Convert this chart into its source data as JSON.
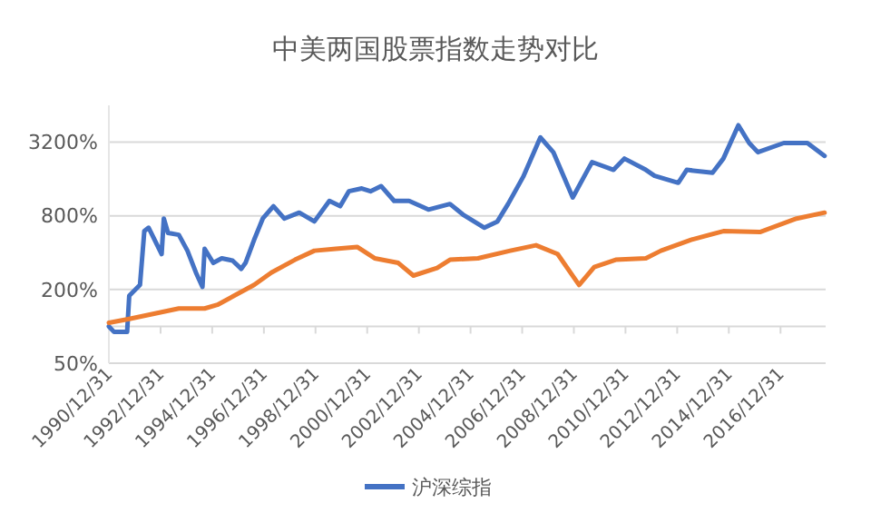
{
  "chart_data": {
    "type": "line",
    "title": "中美两国股票指数走势对比",
    "log": "y",
    "grid": "y",
    "legend": "bottom",
    "line_style": "solid",
    "marker": "none",
    "xlim": [
      "1990-12-31",
      "2018-09-30"
    ],
    "xticks": [
      {
        "value": "1990-12-31",
        "label": "1990/12/31"
      },
      {
        "value": "1992-12-31",
        "label": "1992/12/31"
      },
      {
        "value": "1994-12-31",
        "label": "1994/12/31"
      },
      {
        "value": "1996-12-31",
        "label": "1996/12/31"
      },
      {
        "value": "1998-12-31",
        "label": "1998/12/31"
      },
      {
        "value": "2000-12-31",
        "label": "2000/12/31"
      },
      {
        "value": "2002-12-31",
        "label": "2002/12/31"
      },
      {
        "value": "2004-12-31",
        "label": "2004/12/31"
      },
      {
        "value": "2006-12-31",
        "label": "2006/12/31"
      },
      {
        "value": "2008-12-31",
        "label": "2008/12/31"
      },
      {
        "value": "2010-12-31",
        "label": "2010/12/31"
      },
      {
        "value": "2012-12-31",
        "label": "2012/12/31"
      },
      {
        "value": "2014-12-31",
        "label": "2014/12/31"
      },
      {
        "value": "2016-12-31",
        "label": "2016/12/31"
      }
    ],
    "ylim": [
      50,
      6400
    ],
    "yticks": [
      {
        "value": 50,
        "label": "50%"
      },
      {
        "value": 200,
        "label": "200%"
      },
      {
        "value": 800,
        "label": "800%"
      },
      {
        "value": 3200,
        "label": "3200%"
      }
    ],
    "ref_lines": [
      {
        "axis": "y",
        "value": 100,
        "color": "#d9d9d9"
      }
    ],
    "series": [
      {
        "name": "沪深综指",
        "color": "#4472c4",
        "x": [
          "1990-12-31",
          "1991-03",
          "1991-09",
          "1991-10",
          "1992-03",
          "1992-05",
          "1992-07",
          "1993-01",
          "1993-02",
          "1993-04",
          "1993-09",
          "1994-01",
          "1994-05",
          "1994-08",
          "1994-09",
          "1995-01",
          "1995-05",
          "1995-10",
          "1996-02",
          "1996-04",
          "1996-08",
          "1996-12",
          "1997-05",
          "1997-10",
          "1998-05",
          "1998-12",
          "1999-07",
          "1999-12",
          "2000-04",
          "2000-10",
          "2001-02",
          "2001-07",
          "2002-01",
          "2002-08",
          "2003-05",
          "2004-03",
          "2004-09",
          "2005-07",
          "2006-01",
          "2006-06",
          "2007-01",
          "2007-09",
          "2008-03",
          "2008-12",
          "2009-07",
          "2009-09",
          "2010-07",
          "2010-12",
          "2011-10",
          "2012-02",
          "2013-01",
          "2013-05",
          "2014-05",
          "2014-10",
          "2015-05",
          "2015-10",
          "2016-02",
          "2017-02",
          "2018-01",
          "2018-09"
        ],
        "values": [
          100,
          90,
          90,
          178,
          218,
          600,
          640,
          390,
          760,
          580,
          560,
          415,
          275,
          210,
          430,
          330,
          360,
          345,
          295,
          330,
          510,
          760,
          960,
          760,
          850,
          720,
          1060,
          960,
          1270,
          1340,
          1270,
          1400,
          1060,
          1060,
          900,
          1000,
          820,
          640,
          720,
          1000,
          1670,
          3500,
          2650,
          1130,
          1900,
          2200,
          1900,
          2350,
          1900,
          1700,
          1490,
          1900,
          1800,
          2350,
          4400,
          3150,
          2650,
          3150,
          3150,
          2470
        ]
      },
      {
        "color": "#ed7d31",
        "x": [
          "1990-12-31",
          "1991-10",
          "1993-09",
          "1994-09",
          "1995-03",
          "1996-08",
          "1997-04",
          "1998-03",
          "1998-12",
          "1999-10",
          "2000-08",
          "2001-04",
          "2002-03",
          "2002-10",
          "2003-09",
          "2004-03",
          "2005-04",
          "2006-07",
          "2007-07",
          "2008-05",
          "2009-03",
          "2009-10",
          "2010-08",
          "2011-10",
          "2012-05",
          "2013-07",
          "2014-10",
          "2016-03",
          "2017-08",
          "2018-09"
        ],
        "values": [
          107,
          115,
          140,
          140,
          150,
          218,
          275,
          350,
          415,
          430,
          445,
          360,
          330,
          260,
          300,
          350,
          360,
          415,
          460,
          390,
          218,
          305,
          350,
          360,
          415,
          510,
          600,
          590,
          760,
          850
        ]
      }
    ]
  }
}
